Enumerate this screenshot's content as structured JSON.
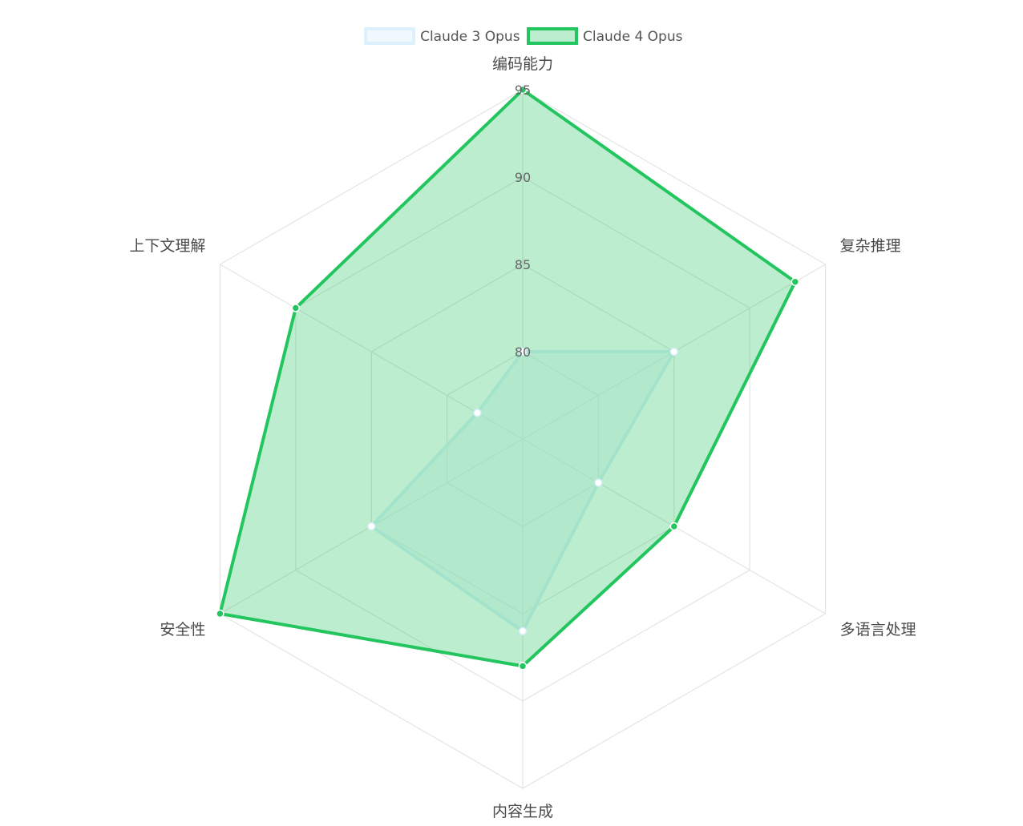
{
  "chart_data": {
    "type": "radar",
    "categories": [
      "编码能力",
      "复杂推理",
      "多语言处理",
      "内容生成",
      "安全性",
      "上下文理解"
    ],
    "ticks": [
      80,
      85,
      90,
      95
    ],
    "rlim": [
      75,
      95
    ],
    "grid": true,
    "legend_position": "top-center",
    "series": [
      {
        "name": "Claude 3 Opus",
        "values": [
          80,
          85,
          80,
          86,
          85,
          78
        ],
        "line_color": "#dcf1fb",
        "fill_color": "rgba(224,242,252,0.45)",
        "point_fill": "#ffffff"
      },
      {
        "name": "Claude 4 Opus",
        "values": [
          95,
          93,
          85,
          88,
          95,
          90
        ],
        "line_color": "#22c55e",
        "fill_color": "rgba(34,197,94,0.30)",
        "point_fill": "#22c55e"
      }
    ]
  }
}
